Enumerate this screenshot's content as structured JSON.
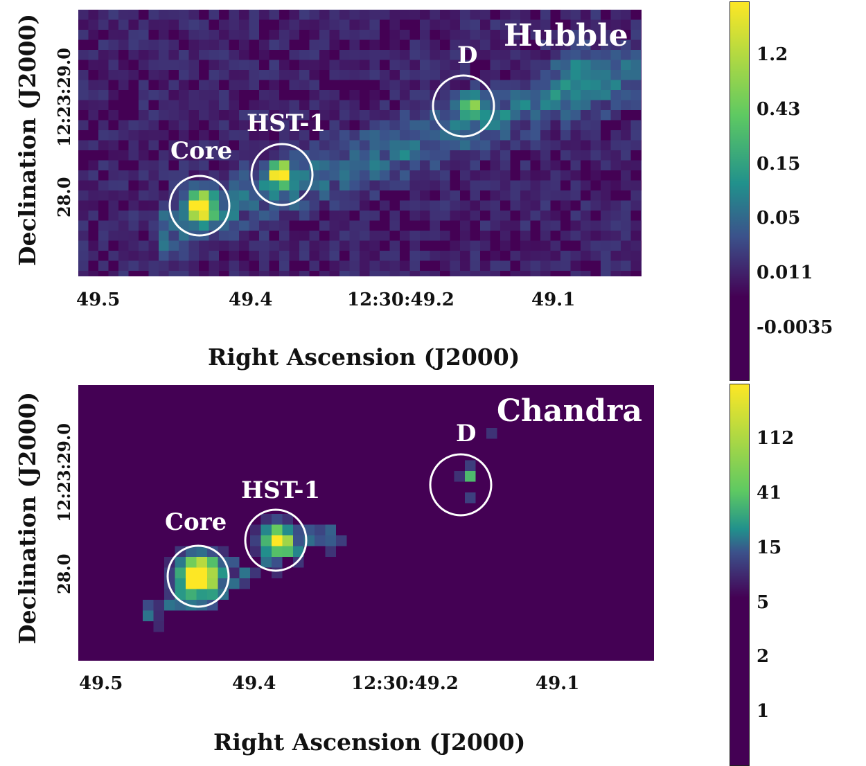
{
  "chart_data": [
    {
      "type": "heatmap",
      "title": "Hubble",
      "xlabel": "Right Ascension (J2000)",
      "ylabel": "Declination (J2000)",
      "x_ticks": [
        "49.5",
        "49.4",
        "12:30:49.2",
        "49.1"
      ],
      "y_ticks": [
        "28.0",
        "12:23:29.0"
      ],
      "colorbar_ticks": [
        "1.2",
        "0.43",
        "0.15",
        "0.05",
        "0.011",
        "-0.0035"
      ],
      "colormap": [
        "#440154",
        "#3b528b",
        "#21918c",
        "#5ec962",
        "#fde725"
      ],
      "sources": [
        {
          "label": "Core",
          "peak": 1.4
        },
        {
          "label": "HST-1",
          "peak": 1.4
        },
        {
          "label": "D",
          "peak": 0.6
        }
      ],
      "jet_brightness": 0.05
    },
    {
      "type": "heatmap",
      "title": "Chandra",
      "xlabel": "Right Ascension (J2000)",
      "ylabel": "Declination (J2000)",
      "x_ticks": [
        "49.5",
        "49.4",
        "12:30:49.2",
        "49.1"
      ],
      "y_ticks": [
        "28.0",
        "12:23:29.0"
      ],
      "colorbar_ticks": [
        "112",
        "41",
        "15",
        "5",
        "2",
        "1"
      ],
      "colormap": [
        "#440154",
        "#3b528b",
        "#21918c",
        "#5ec962",
        "#fde725"
      ],
      "sources": [
        {
          "label": "Core",
          "peak": 150
        },
        {
          "label": "HST-1",
          "peak": 100
        },
        {
          "label": "D",
          "peak": 60
        }
      ]
    }
  ]
}
